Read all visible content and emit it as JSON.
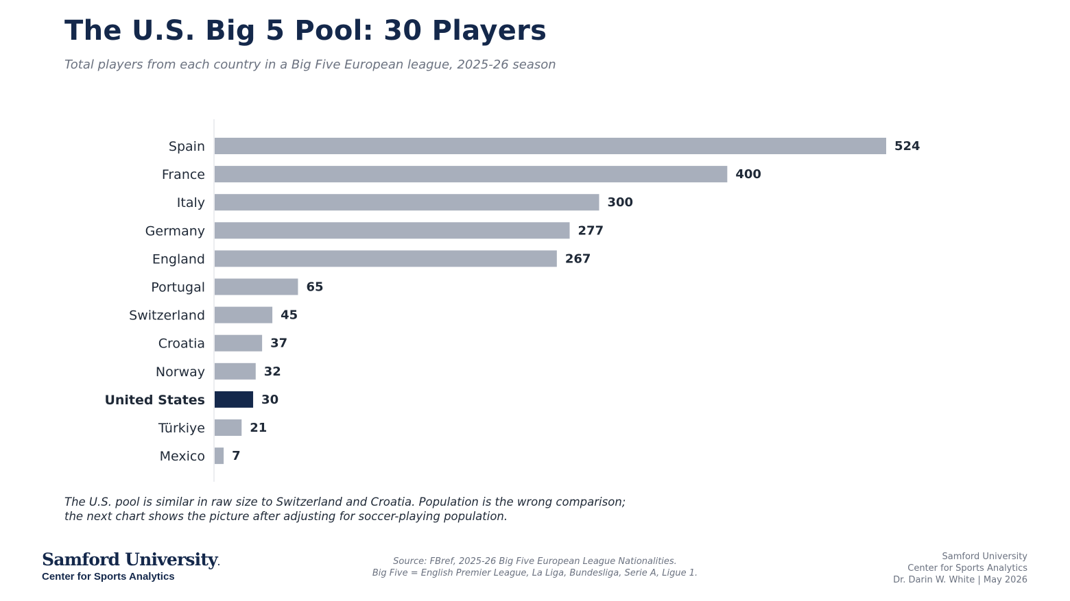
{
  "title": "The U.S. Big 5 Pool: 30 Players",
  "subtitle": "Total players from each country in a Big Five European league, 2025-26 season",
  "chart_data": {
    "type": "bar",
    "orientation": "horizontal",
    "title": "The U.S. Big 5 Pool: 30 Players",
    "subtitle": "Total players from each country in a Big Five European league, 2025-26 season",
    "categories": [
      "Spain",
      "France",
      "Italy",
      "Germany",
      "England",
      "Portugal",
      "Switzerland",
      "Croatia",
      "Norway",
      "United States",
      "Türkiye",
      "Mexico"
    ],
    "values": [
      524,
      400,
      300,
      277,
      267,
      65,
      45,
      37,
      32,
      30,
      21,
      7
    ],
    "highlight": "United States",
    "xlim": [
      0,
      560
    ],
    "grid": false,
    "legend": "none",
    "colors": {
      "default_bar": "#a8afbc",
      "highlight_bar": "#14284b",
      "axis_line": "#e5e7eb"
    }
  },
  "note": {
    "line1": "The U.S. pool is similar in raw size to Switzerland and Croatia. Population is the wrong comparison;",
    "line2": "the next chart shows the picture after adjusting for soccer-playing population."
  },
  "logo": {
    "name": "Samford University",
    "mark": ".",
    "sub": "Center for Sports Analytics"
  },
  "source": {
    "line1": "Source: FBref, 2025-26 Big Five European League Nationalities.",
    "line2": "Big Five = English Premier League, La Liga, Bundesliga, Serie A, Ligue 1."
  },
  "credit": {
    "line1": "Samford University",
    "line2": "Center for Sports Analytics",
    "line3": "Dr. Darin W. White | May 2026"
  }
}
